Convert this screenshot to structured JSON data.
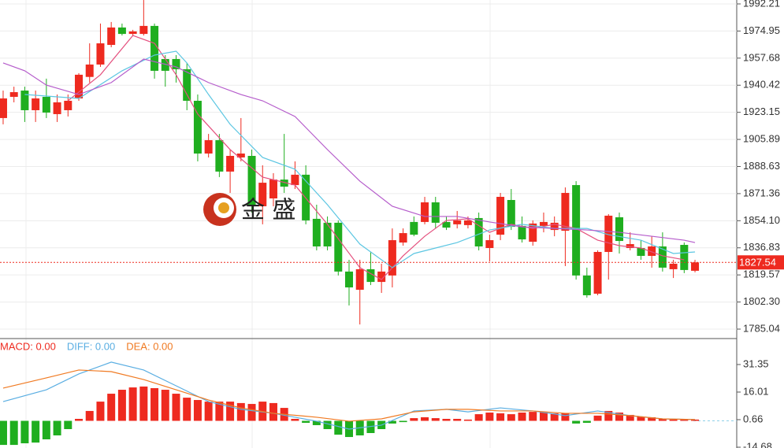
{
  "chart_data": [
    {
      "type": "candlestick",
      "xlim": [
        -0.29,
        67.86
      ],
      "ylim": [
        1779.02,
        1994.71
      ],
      "yticks": [
        1992.21,
        1974.95,
        1957.68,
        1940.42,
        1923.15,
        1905.89,
        1888.63,
        1871.36,
        {
          "value": 1854.1,
          "label": "1854.10"
        },
        1836.83,
        1819.57,
        {
          "value": 1802.3,
          "label": "1802.30"
        },
        1785.04
      ],
      "grid": true,
      "up_color": "#ee2a1f",
      "down_color": "#1fae1f",
      "open": [
        1919.5,
        1933.0,
        1937.0,
        1924.5,
        1933.0,
        1922.0,
        1924.5,
        1932.0,
        1945.7,
        1953.6,
        1966.1,
        1977.2,
        1973.1,
        1973.1,
        1978.2,
        1957.1,
        1957.1,
        1950.6,
        1930.5,
        1896.9,
        1905.4,
        1885.4,
        1894.4,
        1895.4,
        1863.3,
        1868.3,
        1880.3,
        1876.8,
        1883.4,
        1855.3,
        1852.8,
        1852.8,
        1821.7,
        1810.1,
        1823.2,
        1815.1,
        1819.2,
        1840.2,
        1853.3,
        1853.3,
        1865.8,
        1853.3,
        1851.8,
        1851.3,
        1855.8,
        1836.7,
        1845.2,
        1867.3,
        1850.8,
        1840.7,
        1850.8,
        1848.2,
        1847.7,
        1876.8,
        1819.2,
        1807.6,
        1834.2,
        1856.3,
        1836.7,
        1836.7,
        1831.7,
        1837.7,
        1823.2,
        1838.7,
        1822.2
      ],
      "high": [
        1937.0,
        1939.5,
        1939.5,
        1937.0,
        1944.6,
        1934.5,
        1934.5,
        1948.1,
        1967.1,
        1979.7,
        1980.7,
        1979.7,
        1975.7,
        1994.7,
        1979.7,
        1959.6,
        1959.6,
        1954.6,
        1934.5,
        1909.4,
        1909.4,
        1899.4,
        1919.5,
        1899.4,
        1889.4,
        1884.4,
        1909.4,
        1891.9,
        1889.4,
        1864.3,
        1856.8,
        1854.3,
        1829.2,
        1829.2,
        1834.2,
        1826.7,
        1849.2,
        1849.2,
        1856.8,
        1869.3,
        1869.3,
        1856.8,
        1860.3,
        1856.8,
        1859.3,
        1845.2,
        1871.8,
        1874.3,
        1856.8,
        1854.3,
        1859.3,
        1856.8,
        1875.3,
        1879.3,
        1824.2,
        1835.2,
        1858.3,
        1859.3,
        1846.7,
        1841.7,
        1844.2,
        1846.7,
        1829.2,
        1840.2,
        1829.2
      ],
      "low": [
        1915.5,
        1929.5,
        1917.0,
        1917.0,
        1919.5,
        1917.0,
        1920.5,
        1930.5,
        1942.1,
        1952.1,
        1964.6,
        1972.1,
        1971.6,
        1972.1,
        1944.6,
        1939.5,
        1942.1,
        1924.5,
        1891.9,
        1894.4,
        1881.9,
        1871.8,
        1891.9,
        1859.3,
        1851.8,
        1863.3,
        1871.8,
        1874.3,
        1851.8,
        1835.2,
        1835.2,
        1819.2,
        1800.1,
        1788.0,
        1813.1,
        1808.1,
        1811.6,
        1838.2,
        1844.2,
        1851.8,
        1849.2,
        1848.2,
        1849.2,
        1849.2,
        1835.2,
        1828.2,
        1841.7,
        1848.2,
        1840.2,
        1838.2,
        1846.7,
        1844.2,
        1825.2,
        1816.6,
        1805.1,
        1806.6,
        1816.6,
        1833.2,
        1835.2,
        1829.2,
        1824.2,
        1821.7,
        1817.6,
        1820.7,
        1821.2
      ],
      "close": [
        1932.0,
        1936.0,
        1924.5,
        1932.0,
        1923.0,
        1929.5,
        1930.5,
        1947.1,
        1953.6,
        1967.1,
        1977.2,
        1973.1,
        1974.7,
        1978.2,
        1949.6,
        1949.6,
        1950.6,
        1930.5,
        1896.9,
        1905.4,
        1885.4,
        1895.4,
        1896.9,
        1863.3,
        1878.3,
        1880.3,
        1875.8,
        1883.4,
        1854.3,
        1837.7,
        1837.7,
        1821.7,
        1811.6,
        1823.2,
        1815.1,
        1821.7,
        1841.7,
        1846.2,
        1845.2,
        1865.8,
        1852.8,
        1849.7,
        1854.3,
        1854.3,
        1837.7,
        1841.7,
        1869.3,
        1850.2,
        1842.2,
        1852.3,
        1853.3,
        1852.8,
        1871.8,
        1819.2,
        1806.6,
        1834.2,
        1857.3,
        1841.2,
        1839.2,
        1831.7,
        1837.7,
        1824.2,
        1826.7,
        1822.7,
        1827.54
      ],
      "lines": [
        {
          "color": "#e4507e",
          "x": [
            6,
            9,
            12,
            14,
            16,
            18,
            21,
            24,
            27,
            30,
            33,
            35,
            37,
            39,
            41,
            43,
            45,
            47,
            49,
            51,
            53,
            55,
            57,
            59,
            61,
            63
          ],
          "values": [
            1930.5,
            1947.1,
            1972.1,
            1967.1,
            1947.1,
            1922.0,
            1899.4,
            1881.9,
            1876.8,
            1851.8,
            1824.2,
            1816.6,
            1831.7,
            1844.2,
            1854.3,
            1855.3,
            1846.7,
            1851.8,
            1849.2,
            1851.8,
            1849.2,
            1841.7,
            1838.2,
            1836.7,
            1831.7,
            1829.2
          ]
        },
        {
          "color": "#5cc6e2",
          "x": [
            2,
            7,
            11,
            14,
            16,
            17,
            19,
            21,
            24,
            27,
            30,
            33,
            36,
            38,
            40,
            42,
            45,
            48,
            51,
            54,
            56,
            59,
            62,
            64
          ],
          "values": [
            1934.5,
            1932.0,
            1949.6,
            1959.6,
            1962.1,
            1954.6,
            1934.5,
            1915.5,
            1894.4,
            1886.9,
            1864.3,
            1839.2,
            1824.2,
            1833.2,
            1836.7,
            1840.2,
            1848.2,
            1851.8,
            1849.2,
            1849.2,
            1845.2,
            1841.7,
            1833.2,
            1834.2
          ]
        },
        {
          "color": "#b55ccb",
          "x": [
            0,
            2,
            4,
            7,
            10,
            13,
            16,
            19,
            22,
            24,
            27,
            30,
            33,
            36,
            39,
            42,
            45,
            48,
            51,
            54,
            57,
            60,
            63,
            64
          ],
          "values": [
            1954.6,
            1949.6,
            1940.5,
            1934.5,
            1942.1,
            1957.1,
            1952.1,
            1942.1,
            1934.5,
            1930.5,
            1920.5,
            1899.4,
            1879.3,
            1863.3,
            1856.8,
            1856.8,
            1853.3,
            1850.2,
            1849.2,
            1848.2,
            1846.7,
            1844.2,
            1841.7,
            1840.2
          ]
        }
      ],
      "last_price": 1827.54,
      "last_price_color": "#ee2a1f",
      "watermark": "金 盛"
    },
    {
      "type": "macd",
      "xlim": [
        -0.29,
        67.86
      ],
      "ylim": [
        -15.12,
        45.8
      ],
      "yticks": [
        31.35,
        16.01,
        0.66,
        -14.68
      ],
      "up_color": "#ee2a1f",
      "down_color": "#1fae1f",
      "series": [
        {
          "name": "MACD: 0.00",
          "kind": "bar",
          "color": "#ee2a1f",
          "values": [
            -13.4,
            -13.4,
            -12.5,
            -12.1,
            -10.3,
            -8.1,
            -4.6,
            1.1,
            5.5,
            10.7,
            15.1,
            17.3,
            18.6,
            19.1,
            18.2,
            17.3,
            15.1,
            12.9,
            11.6,
            10.7,
            10.7,
            10.7,
            9.9,
            9.4,
            10.7,
            9.9,
            7.2,
            1.1,
            -1.1,
            -2.4,
            -4.6,
            -7.7,
            -9.0,
            -8.1,
            -6.8,
            -4.6,
            -1.5,
            -0.7,
            1.5,
            2.0,
            1.5,
            1.1,
            1.1,
            0.7,
            3.7,
            4.6,
            4.2,
            3.7,
            4.6,
            5.0,
            5.0,
            4.2,
            4.2,
            -1.5,
            -1.1,
            2.9,
            5.5,
            4.6,
            3.3,
            2.4,
            2.0,
            1.1,
            0.7,
            0.7,
            0.7
          ]
        },
        {
          "name": "DIFF: 0.00",
          "kind": "line",
          "color": "#5aaee2",
          "x": [
            0,
            4,
            7,
            10,
            13,
            16,
            19,
            22,
            25,
            29,
            32,
            35,
            38,
            41,
            43,
            46,
            49,
            52,
            55,
            58,
            61,
            64
          ],
          "values": [
            10.7,
            17.3,
            26.1,
            32.7,
            28.3,
            19.5,
            10.7,
            6.4,
            4.2,
            -0.2,
            -4.6,
            -2.4,
            5.5,
            6.4,
            5.0,
            7.2,
            5.5,
            2.9,
            5.5,
            2.9,
            1.1,
            0.7
          ]
        },
        {
          "name": "DEA: 0.00",
          "kind": "line",
          "color": "#f07a22",
          "x": [
            0,
            4,
            7,
            10,
            13,
            16,
            19,
            22,
            25,
            29,
            32,
            35,
            38,
            41,
            43,
            46,
            49,
            52,
            55,
            58,
            61,
            64
          ],
          "values": [
            18.2,
            23.9,
            28.3,
            27.4,
            23.0,
            17.3,
            11.6,
            7.2,
            4.2,
            2.0,
            -0.2,
            1.1,
            5.0,
            6.4,
            6.4,
            5.5,
            5.5,
            4.2,
            4.2,
            2.9,
            1.1,
            0.7
          ]
        }
      ]
    }
  ]
}
